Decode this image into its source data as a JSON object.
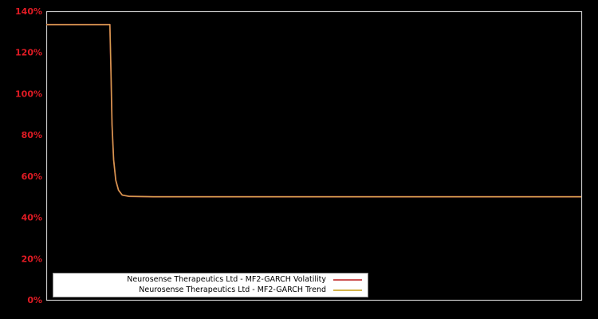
{
  "chart_data": {
    "type": "line",
    "title": "",
    "xlabel": "",
    "ylabel": "",
    "ylim": [
      0,
      140
    ],
    "x_range_fraction": [
      0,
      100
    ],
    "y_tick_values": [
      0,
      20,
      40,
      60,
      80,
      100,
      120,
      140
    ],
    "y_tick_labels": [
      "0%",
      "20%",
      "40%",
      "60%",
      "80%",
      "100%",
      "120%",
      "140%"
    ],
    "grid": false,
    "legend_position": "lower-left-inside",
    "colors": {
      "background": "#000000",
      "axis_border": "#c8c8c8",
      "tick_label": "#e01b24",
      "legend_background": "#ffffff",
      "legend_text": "#000000"
    },
    "series": [
      {
        "name": "Neurosense Therapeutics Ltd - MF2-GARCH Volatility",
        "color": "#cd5555",
        "stroke_width": 1.8,
        "opacity": 1,
        "points": [
          [
            0,
            133.5
          ],
          [
            11.9,
            133.5
          ],
          [
            12.1,
            110
          ],
          [
            12.3,
            85
          ],
          [
            12.6,
            68
          ],
          [
            13.0,
            58
          ],
          [
            13.5,
            53.2
          ],
          [
            14.2,
            50.8
          ],
          [
            15.5,
            50.2
          ],
          [
            20,
            50
          ],
          [
            100,
            50
          ]
        ]
      },
      {
        "name": "Neurosense Therapeutics Ltd - MF2-GARCH Trend",
        "color": "#d4b44a",
        "stroke_width": 1.4,
        "opacity": 0.75,
        "points": [
          [
            0,
            133.5
          ],
          [
            11.9,
            133.5
          ],
          [
            12.1,
            110
          ],
          [
            12.3,
            85
          ],
          [
            12.6,
            68
          ],
          [
            13.0,
            58
          ],
          [
            13.5,
            53.2
          ],
          [
            14.2,
            50.8
          ],
          [
            15.5,
            50.2
          ],
          [
            20,
            50
          ],
          [
            100,
            50
          ]
        ]
      }
    ]
  }
}
